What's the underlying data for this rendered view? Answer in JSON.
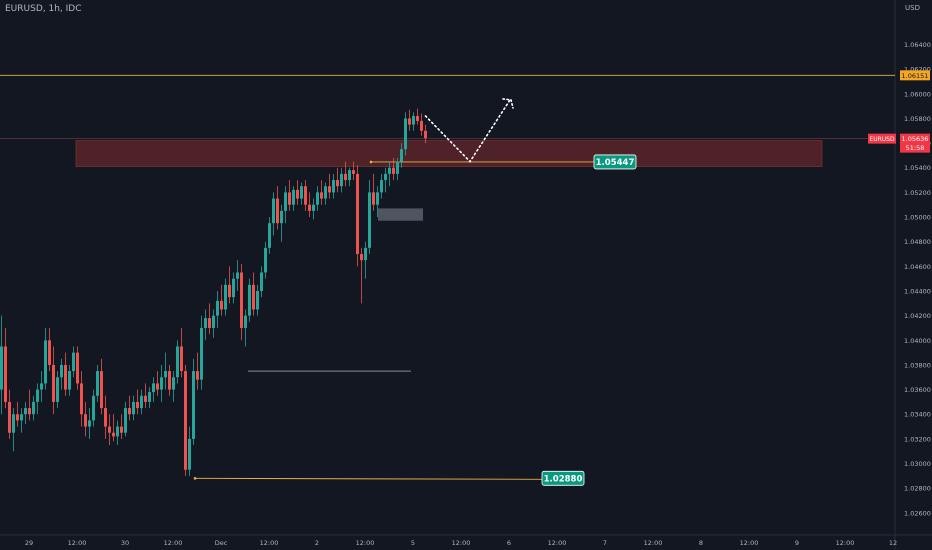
{
  "header": {
    "symbol_label": "EURUSD, 1h, IDC"
  },
  "colors": {
    "background": "#131722",
    "up": "#26a69a",
    "down": "#ef5350",
    "zone": "#5a2428",
    "line": "#e7b24a",
    "label_green": "#089981",
    "label_red": "#f23645",
    "label_orange": "#f5a623"
  },
  "chart_data": {
    "type": "candlestick",
    "symbol": "EURUSD",
    "timeframe": "1h",
    "axis_unit": "USD",
    "ylim": [
      1.0255,
      1.0655
    ],
    "y_ticks": [
      "1.06400",
      "1.06200",
      "1.06000",
      "1.05800",
      "1.05600",
      "1.05400",
      "1.05200",
      "1.05000",
      "1.04800",
      "1.04600",
      "1.04400",
      "1.04200",
      "1.04000",
      "1.03800",
      "1.03600",
      "1.03400",
      "1.03200",
      "1.03000",
      "1.02800",
      "1.02600"
    ],
    "x_ticks": [
      "29",
      "12:00",
      "30",
      "12:00",
      "Dec",
      "12:00",
      "2",
      "12:00",
      "5",
      "12:00",
      "6",
      "12:00",
      "7",
      "12:00",
      "8",
      "12:00",
      "9",
      "12:00",
      "12"
    ],
    "x_tick_index": [
      0,
      12,
      24,
      36,
      48,
      60,
      72,
      84,
      96,
      108,
      120,
      132,
      144,
      156,
      168,
      180,
      192,
      204,
      216
    ],
    "candles": [
      [
        1.036,
        1.042,
        1.034,
        1.0395
      ],
      [
        1.0395,
        1.041,
        1.0345,
        1.035
      ],
      [
        1.035,
        1.036,
        1.032,
        1.0325
      ],
      [
        1.0325,
        1.0345,
        1.031,
        1.034
      ],
      [
        1.034,
        1.035,
        1.033,
        1.0335
      ],
      [
        1.0335,
        1.0345,
        1.0325,
        1.034
      ],
      [
        1.034,
        1.035,
        1.0332,
        1.0345
      ],
      [
        1.0345,
        1.036,
        1.0335,
        1.034
      ],
      [
        1.034,
        1.0355,
        1.0335,
        1.035
      ],
      [
        1.035,
        1.0365,
        1.034,
        1.036
      ],
      [
        1.036,
        1.0375,
        1.035,
        1.0365
      ],
      [
        1.0365,
        1.041,
        1.036,
        1.04
      ],
      [
        1.04,
        1.041,
        1.0375,
        1.038
      ],
      [
        1.038,
        1.0395,
        1.034,
        1.035
      ],
      [
        1.035,
        1.0375,
        1.0345,
        1.037
      ],
      [
        1.037,
        1.0385,
        1.036,
        1.038
      ],
      [
        1.038,
        1.039,
        1.0355,
        1.036
      ],
      [
        1.036,
        1.038,
        1.0355,
        1.0375
      ],
      [
        1.0375,
        1.0395,
        1.037,
        1.039
      ],
      [
        1.039,
        1.0395,
        1.036,
        1.0365
      ],
      [
        1.0365,
        1.0375,
        1.033,
        1.034
      ],
      [
        1.034,
        1.035,
        1.0322,
        1.033
      ],
      [
        1.033,
        1.0345,
        1.032,
        1.0335
      ],
      [
        1.0335,
        1.036,
        1.033,
        1.0355
      ],
      [
        1.0355,
        1.038,
        1.035,
        1.0375
      ],
      [
        1.0375,
        1.0385,
        1.034,
        1.0345
      ],
      [
        1.0345,
        1.0355,
        1.032,
        1.033
      ],
      [
        1.033,
        1.034,
        1.0315,
        1.0325
      ],
      [
        1.0325,
        1.034,
        1.0318,
        1.0322
      ],
      [
        1.0322,
        1.0335,
        1.0315,
        1.033
      ],
      [
        1.033,
        1.034,
        1.032,
        1.0325
      ],
      [
        1.0325,
        1.035,
        1.0322,
        1.0345
      ],
      [
        1.0345,
        1.0355,
        1.0335,
        1.034
      ],
      [
        1.034,
        1.0355,
        1.0335,
        1.035
      ],
      [
        1.035,
        1.036,
        1.034,
        1.0345
      ],
      [
        1.0345,
        1.036,
        1.034,
        1.0355
      ],
      [
        1.0355,
        1.0365,
        1.0345,
        1.035
      ],
      [
        1.035,
        1.0362,
        1.0345,
        1.0358
      ],
      [
        1.0358,
        1.037,
        1.035,
        1.0365
      ],
      [
        1.0365,
        1.0375,
        1.0355,
        1.036
      ],
      [
        1.036,
        1.038,
        1.035,
        1.037
      ],
      [
        1.037,
        1.039,
        1.036,
        1.0375
      ],
      [
        1.0375,
        1.038,
        1.0355,
        1.036
      ],
      [
        1.036,
        1.0375,
        1.035,
        1.037
      ],
      [
        1.037,
        1.04,
        1.0365,
        1.0395
      ],
      [
        1.0395,
        1.041,
        1.037,
        1.0375
      ],
      [
        1.0375,
        1.038,
        1.029,
        1.0295
      ],
      [
        1.0295,
        1.033,
        1.029,
        1.032
      ],
      [
        1.032,
        1.0385,
        1.0315,
        1.0375
      ],
      [
        1.0375,
        1.039,
        1.036,
        1.0368
      ],
      [
        1.0368,
        1.042,
        1.036,
        1.041
      ],
      [
        1.041,
        1.0425,
        1.04,
        1.0418
      ],
      [
        1.0418,
        1.043,
        1.0405,
        1.041
      ],
      [
        1.041,
        1.0425,
        1.0402,
        1.042
      ],
      [
        1.042,
        1.044,
        1.041,
        1.0432
      ],
      [
        1.0432,
        1.0445,
        1.042,
        1.0425
      ],
      [
        1.0425,
        1.045,
        1.042,
        1.0445
      ],
      [
        1.0445,
        1.046,
        1.043,
        1.0435
      ],
      [
        1.0435,
        1.0455,
        1.043,
        1.045
      ],
      [
        1.045,
        1.0465,
        1.044,
        1.0455
      ],
      [
        1.0455,
        1.0462,
        1.04,
        1.041
      ],
      [
        1.041,
        1.0425,
        1.0395,
        1.042
      ],
      [
        1.042,
        1.045,
        1.0415,
        1.0445
      ],
      [
        1.0445,
        1.0455,
        1.042,
        1.0425
      ],
      [
        1.0425,
        1.0445,
        1.042,
        1.044
      ],
      [
        1.044,
        1.046,
        1.0435,
        1.0455
      ],
      [
        1.0455,
        1.048,
        1.045,
        1.0475
      ],
      [
        1.0475,
        1.05,
        1.047,
        1.0495
      ],
      [
        1.0495,
        1.052,
        1.0485,
        1.0515
      ],
      [
        1.0515,
        1.0525,
        1.049,
        1.0495
      ],
      [
        1.0495,
        1.051,
        1.048,
        1.0505
      ],
      [
        1.0505,
        1.0525,
        1.0495,
        1.052
      ],
      [
        1.052,
        1.053,
        1.0505,
        1.051
      ],
      [
        1.051,
        1.0525,
        1.0505,
        1.0522
      ],
      [
        1.0522,
        1.053,
        1.051,
        1.0515
      ],
      [
        1.0515,
        1.0528,
        1.051,
        1.0525
      ],
      [
        1.0525,
        1.053,
        1.0505,
        1.051
      ],
      [
        1.051,
        1.052,
        1.05,
        1.0505
      ],
      [
        1.0505,
        1.0515,
        1.0498,
        1.051
      ],
      [
        1.051,
        1.0525,
        1.0505,
        1.052
      ],
      [
        1.052,
        1.053,
        1.051,
        1.0515
      ],
      [
        1.0515,
        1.0528,
        1.051,
        1.0525
      ],
      [
        1.0525,
        1.0535,
        1.0515,
        1.052
      ],
      [
        1.052,
        1.0535,
        1.0515,
        1.053
      ],
      [
        1.053,
        1.054,
        1.052,
        1.0525
      ],
      [
        1.0525,
        1.054,
        1.052,
        1.0535
      ],
      [
        1.0535,
        1.0545,
        1.0525,
        1.053
      ],
      [
        1.053,
        1.054,
        1.0525,
        1.0538
      ],
      [
        1.0538,
        1.0545,
        1.053,
        1.0535
      ],
      [
        1.0535,
        1.0542,
        1.046,
        1.047
      ],
      [
        1.047,
        1.0475,
        1.043,
        1.0465
      ],
      [
        1.0465,
        1.048,
        1.045,
        1.0475
      ],
      [
        1.0475,
        1.053,
        1.047,
        1.052
      ],
      [
        1.052,
        1.0535,
        1.0505,
        1.051
      ],
      [
        1.051,
        1.0525,
        1.05,
        1.052
      ],
      [
        1.052,
        1.0535,
        1.0515,
        1.053
      ],
      [
        1.053,
        1.054,
        1.052,
        1.0535
      ],
      [
        1.0535,
        1.0545,
        1.0525,
        1.054
      ],
      [
        1.054,
        1.0548,
        1.053,
        1.0535
      ],
      [
        1.0535,
        1.0548,
        1.053,
        1.0545
      ],
      [
        1.0545,
        1.056,
        1.054,
        1.0555
      ],
      [
        1.0555,
        1.0585,
        1.055,
        1.058
      ],
      [
        1.058,
        1.0587,
        1.057,
        1.0575
      ],
      [
        1.0575,
        1.0585,
        1.057,
        1.0582
      ],
      [
        1.0582,
        1.0588,
        1.0575,
        1.0578
      ],
      [
        1.0578,
        1.0584,
        1.0566,
        1.057
      ],
      [
        1.057,
        1.0575,
        1.056,
        1.0564
      ]
    ],
    "last_price": "1.05636",
    "countdown": "51:58",
    "levels": [
      {
        "price": 1.0615,
        "label": "1.06151"
      },
      {
        "price": 1.05447,
        "label": "1.05447"
      },
      {
        "price": 1.0288,
        "label": "1.02880"
      }
    ],
    "zone": {
      "top": 1.0562,
      "bottom": 1.0541
    },
    "projection": [
      [
        1.0582,
        1.0545,
        1.0595
      ]
    ]
  }
}
